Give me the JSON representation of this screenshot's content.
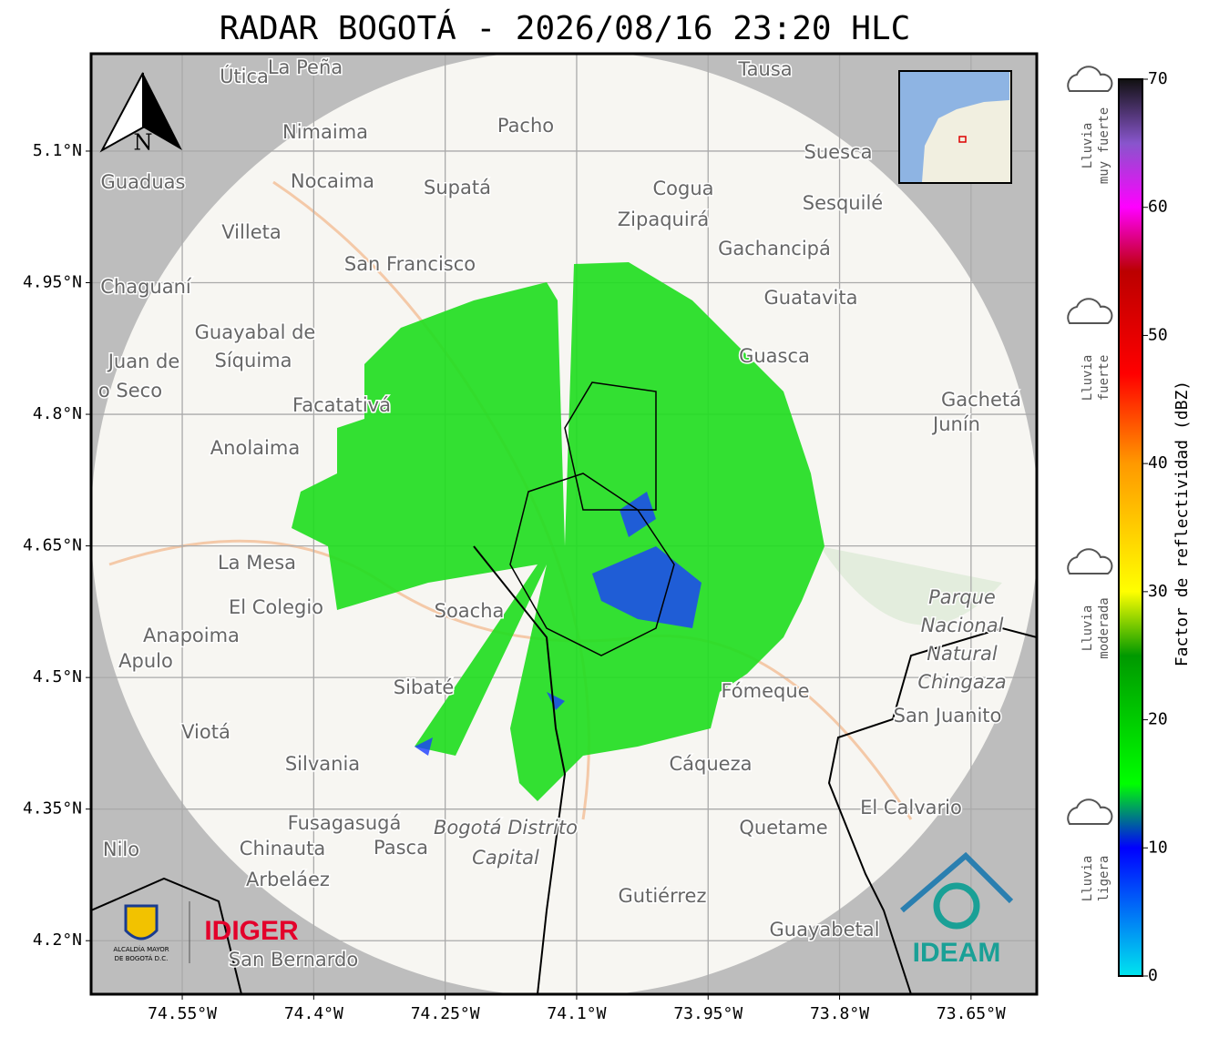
{
  "title": "RADAR BOGOTÁ - 2026/08/16 23:20 HLC",
  "map": {
    "extent": {
      "lon": [
        -74.654,
        -73.575
      ],
      "lat": [
        4.139,
        5.211
      ]
    },
    "lat_ticks": [
      {
        "value": 5.1,
        "label": "5.1°N"
      },
      {
        "value": 4.95,
        "label": "4.95°N"
      },
      {
        "value": 4.8,
        "label": "4.8°N"
      },
      {
        "value": 4.65,
        "label": "4.65°N"
      },
      {
        "value": 4.5,
        "label": "4.5°N"
      },
      {
        "value": 4.35,
        "label": "4.35°N"
      },
      {
        "value": 4.2,
        "label": "4.2°N"
      }
    ],
    "lon_ticks": [
      {
        "value": -74.55,
        "label": "74.55°W"
      },
      {
        "value": -74.4,
        "label": "74.4°W"
      },
      {
        "value": -74.25,
        "label": "74.25°W"
      },
      {
        "value": -74.1,
        "label": "74.1°W"
      },
      {
        "value": -73.95,
        "label": "73.95°W"
      },
      {
        "value": -73.8,
        "label": "73.8°W"
      },
      {
        "value": -73.65,
        "label": "73.65°W"
      }
    ],
    "places": [
      "Útica",
      "La Peña",
      "Tausa",
      "Pacho",
      "Nimaima",
      "Guaduas",
      "Nocaima",
      "Supatá",
      "Cogua",
      "Suesca",
      "Zipaquirá",
      "Sesquilé",
      "Villeta",
      "Gachancipá",
      "San Francisco",
      "Chaguaní",
      "Guatavita",
      "Guayabal de",
      "Síquima",
      "Juan de",
      "o Seco",
      "Guasca",
      "Facatativá",
      "Gachetá",
      "Junín",
      "Anolaima",
      "La Mesa",
      "El Colegio",
      "Soacha",
      "Anapoima",
      "Apulo",
      "Sibaté",
      "Fómeque",
      "San Juanito",
      "Viotá",
      "Silvania",
      "Cáqueza",
      "El Calvario",
      "Fusagasugá",
      "Quetame",
      "Nilo",
      "Chinauta",
      "Pasca",
      "Arbeláez",
      "Gutiérrez",
      "Guayabetal",
      "San Bernardo"
    ],
    "park": [
      "Parque",
      "Nacional",
      "Natural",
      "Chingaza"
    ],
    "district": [
      "Bogotá Distrito",
      "Capital"
    ],
    "north": "N"
  },
  "logos": {
    "alcaldia": [
      "ALCALDÍA MAYOR",
      "DE BOGOTÁ D.C."
    ],
    "idiger": "IDIGER",
    "ideam": "IDEAM"
  },
  "colorbar": {
    "label": "Factor de reflectividad (dBZ)",
    "range": [
      0,
      70
    ],
    "ticks": [
      0,
      10,
      20,
      30,
      40,
      50,
      60,
      70
    ],
    "stops": [
      {
        "value": 0,
        "color": "#00e5ee"
      },
      {
        "value": 10,
        "color": "#0000ff"
      },
      {
        "value": 15,
        "color": "#00ff00"
      },
      {
        "value": 25,
        "color": "#009900"
      },
      {
        "value": 30,
        "color": "#ffff00"
      },
      {
        "value": 40,
        "color": "#ff9900"
      },
      {
        "value": 47,
        "color": "#ff0000"
      },
      {
        "value": 55,
        "color": "#bb0000"
      },
      {
        "value": 60,
        "color": "#ff00ff"
      },
      {
        "value": 65,
        "color": "#8855cc"
      },
      {
        "value": 70,
        "color": "#111111"
      }
    ],
    "classes": [
      {
        "lines": [
          "Lluvia",
          "muy fuerte"
        ]
      },
      {
        "lines": [
          "Lluvia",
          "fuerte"
        ]
      },
      {
        "lines": [
          "Lluvia",
          "moderada"
        ]
      },
      {
        "lines": [
          "Lluvia",
          "ligera"
        ]
      }
    ]
  }
}
